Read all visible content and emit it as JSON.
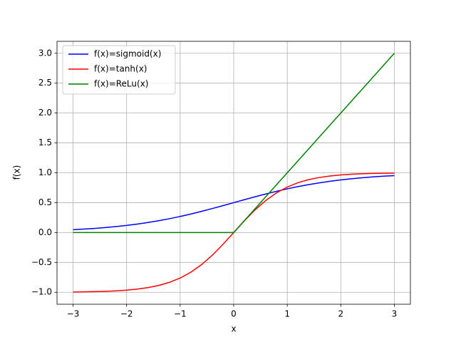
{
  "chart_data": {
    "type": "line",
    "xlabel": "x",
    "ylabel": "f(x)",
    "x": [
      -3,
      -2.8,
      -2.6,
      -2.4,
      -2.2,
      -2,
      -1.8,
      -1.6,
      -1.4,
      -1.2,
      -1,
      -0.8,
      -0.6,
      -0.4,
      -0.2,
      0,
      0.2,
      0.4,
      0.6,
      0.8,
      1,
      1.2,
      1.4,
      1.6,
      1.8,
      2,
      2.2,
      2.4,
      2.6,
      2.8,
      3
    ],
    "series": [
      {
        "name": "f(x)=sigmoid(x)",
        "color": "#0000ff",
        "values": [
          0.0474,
          0.0573,
          0.0691,
          0.0832,
          0.0998,
          0.1192,
          0.1419,
          0.168,
          0.1978,
          0.2315,
          0.2689,
          0.31,
          0.3543,
          0.4013,
          0.4502,
          0.5,
          0.5498,
          0.5987,
          0.6457,
          0.69,
          0.7311,
          0.7685,
          0.8022,
          0.832,
          0.8581,
          0.8808,
          0.9002,
          0.9168,
          0.9309,
          0.9427,
          0.9526
        ]
      },
      {
        "name": "f(x)=tanh(x)",
        "color": "#ff0000",
        "values": [
          -0.9951,
          -0.9926,
          -0.989,
          -0.9837,
          -0.9757,
          -0.964,
          -0.9468,
          -0.9217,
          -0.8854,
          -0.8337,
          -0.7616,
          -0.664,
          -0.537,
          -0.3799,
          -0.1974,
          0,
          0.1974,
          0.3799,
          0.537,
          0.664,
          0.7616,
          0.8337,
          0.8854,
          0.9217,
          0.9468,
          0.964,
          0.9757,
          0.9837,
          0.989,
          0.9926,
          0.9951
        ]
      },
      {
        "name": "f(x)=ReLu(x)",
        "color": "#008000",
        "values": [
          0,
          0,
          0,
          0,
          0,
          0,
          0,
          0,
          0,
          0,
          0,
          0,
          0,
          0,
          0,
          0,
          0.2,
          0.4,
          0.6,
          0.8,
          1,
          1.2,
          1.4,
          1.6,
          1.8,
          2,
          2.2,
          2.4,
          2.6,
          2.8,
          3
        ]
      }
    ],
    "xlim": [
      -3.3,
      3.3
    ],
    "ylim": [
      -1.2,
      3.2
    ],
    "xticks": [
      {
        "value": -3,
        "label": "−3"
      },
      {
        "value": -2,
        "label": "−2"
      },
      {
        "value": -1,
        "label": "−1"
      },
      0,
      1,
      2,
      3
    ],
    "yticks": [
      {
        "value": -1,
        "label": "−1.0"
      },
      {
        "value": -0.5,
        "label": "−0.5"
      },
      {
        "value": 0,
        "label": "0.0"
      },
      0.5,
      {
        "value": 1,
        "label": "1.0"
      },
      1.5,
      {
        "value": 2,
        "label": "2.0"
      },
      2.5,
      {
        "value": 3,
        "label": "3.0"
      }
    ],
    "grid": true,
    "legend": "upper-left"
  }
}
